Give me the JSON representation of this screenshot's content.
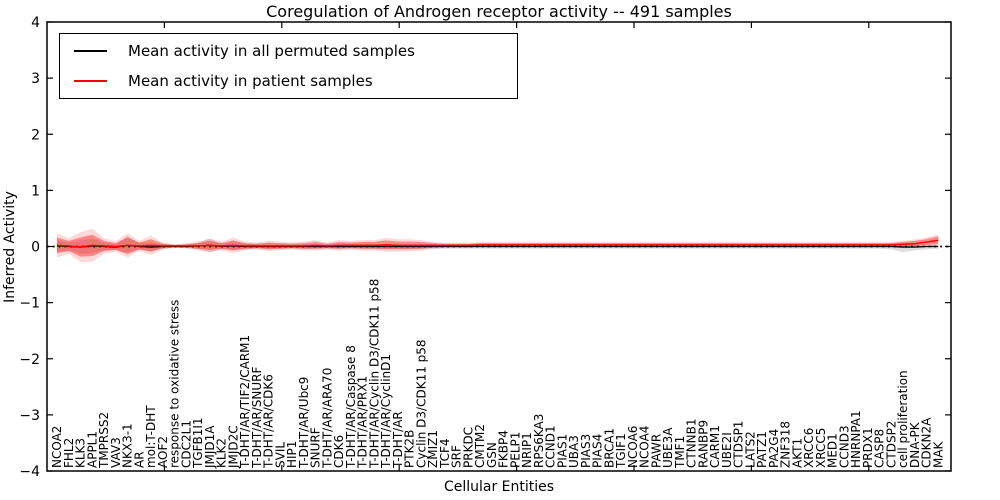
{
  "title": "Coregulation of Androgen receptor activity -- 491 samples",
  "legend": {
    "items": [
      {
        "label": "Mean activity in all permuted samples",
        "color": "#000000"
      },
      {
        "label": "Mean activity in patient samples",
        "color": "#ff0000"
      }
    ],
    "position": "upper left"
  },
  "colors": {
    "permuted_line": "#000000",
    "patient_line": "#ff0000",
    "permuted_band": "rgba(0,0,0,0.13)",
    "patient_band": "rgba(255,0,0,0.38)",
    "patient_band_halo": "rgba(255,0,0,0.15)",
    "axis": "#000000",
    "background": "#ffffff"
  },
  "chart_data": {
    "type": "line",
    "title": "Coregulation of Androgen receptor activity -- 491 samples",
    "xlabel": "Cellular Entities",
    "ylabel": "Inferred Activity",
    "ylim": [
      -4,
      4
    ],
    "yticks": [
      4,
      3,
      2,
      1,
      0,
      -1,
      -2,
      -3,
      -4
    ],
    "grid": false,
    "legend_position": "upper left",
    "zero_reference_line": "dotted",
    "x_tick_label_rotation": 90,
    "categories": [
      "NCOA2",
      "FHL2",
      "KLK3",
      "APPL1",
      "TMPRSS2",
      "VAV3",
      "NKX3-1",
      "AR",
      "mol:T-DHT",
      "AOF2",
      "response to oxidative stress",
      "CDC2L1",
      "TGFB1I1",
      "JMJD1A",
      "KLK2",
      "JMJD2C",
      "T-DHT/AR/TIF2/CARM1",
      "T-DHT/AR/SNURF",
      "T-DHT/AR/CDK6",
      "SVIL",
      "HIP1",
      "T-DHT/AR/Ubc9",
      "SNURF",
      "T-DHT/AR/ARA70",
      "CDK6",
      "T-DHT/AR/Caspase 8",
      "T-DHT/AR/PRX1",
      "T-DHT/AR/Cyclin D3/CDK11 p58",
      "T-DHT/AR/CyclinD1",
      "T-DHT/AR",
      "PTK2B",
      "Cyclin D3/CDK11 p58",
      "ZMIZ1",
      "TCF4",
      "SRF",
      "PRKDC",
      "CMTM2",
      "GSN",
      "FKBP4",
      "PELP1",
      "NRIP1",
      "RPS6KA3",
      "CCND1",
      "PIAS1",
      "UBA3",
      "PIAS3",
      "PIAS4",
      "BRCA1",
      "TGIF1",
      "NCOA6",
      "NCOA4",
      "PAWR",
      "UBE3A",
      "TMF1",
      "CTNNB1",
      "RANBP9",
      "CARM1",
      "UBE2I",
      "CTDSP1",
      "LATS2",
      "PATZ1",
      "PA2G4",
      "ZNF318",
      "AKT1",
      "XRCC6",
      "XRCC5",
      "MED1",
      "CCND3",
      "HNRNPA1",
      "PRDX1",
      "CASP8",
      "CTDSP2",
      "cell proliferation",
      "DNA-PK",
      "CDKN2A",
      "MAK"
    ],
    "series": [
      {
        "name": "Mean activity in all permuted samples",
        "color": "#000000",
        "style": "solid",
        "values": [
          0.01,
          0.0,
          -0.01,
          0.01,
          0.0,
          -0.01,
          0.02,
          0.0,
          -0.01,
          0.0,
          0.0,
          0.0,
          0.01,
          0.02,
          0.0,
          0.01,
          0.0,
          0.0,
          0.0,
          0.0,
          0.0,
          0.0,
          0.0,
          0.0,
          0.0,
          0.0,
          0.0,
          0.0,
          0.0,
          0.0,
          0.0,
          0.0,
          0.0,
          0.0,
          0.0,
          0.0,
          0.0,
          0.0,
          0.0,
          0.0,
          0.0,
          0.0,
          0.0,
          0.0,
          0.0,
          0.0,
          0.0,
          0.0,
          0.0,
          0.0,
          0.0,
          0.0,
          0.0,
          0.0,
          0.0,
          0.0,
          0.0,
          0.0,
          0.0,
          0.0,
          0.0,
          0.0,
          0.0,
          0.0,
          0.0,
          0.0,
          0.0,
          0.0,
          0.0,
          0.0,
          0.0,
          0.0,
          -0.01,
          -0.01,
          0.0,
          0.0
        ]
      },
      {
        "name": "Mean activity in patient samples",
        "color": "#ff0000",
        "style": "solid",
        "values": [
          0.02,
          0.01,
          -0.01,
          0.02,
          0.01,
          0.0,
          0.02,
          0.01,
          0.02,
          0.01,
          0.01,
          0.01,
          0.01,
          0.02,
          0.01,
          0.02,
          0.01,
          0.01,
          0.01,
          0.01,
          0.01,
          0.01,
          0.02,
          0.01,
          0.02,
          0.02,
          0.02,
          0.02,
          0.03,
          0.02,
          0.02,
          0.02,
          0.02,
          0.02,
          0.02,
          0.02,
          0.03,
          0.03,
          0.03,
          0.03,
          0.03,
          0.03,
          0.03,
          0.03,
          0.03,
          0.03,
          0.03,
          0.03,
          0.03,
          0.03,
          0.03,
          0.03,
          0.03,
          0.03,
          0.03,
          0.03,
          0.03,
          0.03,
          0.03,
          0.03,
          0.03,
          0.03,
          0.03,
          0.03,
          0.03,
          0.03,
          0.03,
          0.03,
          0.03,
          0.03,
          0.03,
          0.03,
          0.04,
          0.05,
          0.08,
          0.11
        ]
      }
    ],
    "bands": [
      {
        "name": "permuted samples std band",
        "color": "#000000",
        "lower": [
          -0.09,
          -0.07,
          -0.13,
          -0.12,
          -0.07,
          -0.06,
          -0.15,
          -0.06,
          -0.09,
          -0.04,
          -0.03,
          -0.03,
          -0.05,
          -0.1,
          -0.05,
          -0.06,
          -0.05,
          -0.04,
          -0.04,
          -0.04,
          -0.04,
          -0.04,
          -0.04,
          -0.04,
          -0.04,
          -0.04,
          -0.04,
          -0.04,
          -0.04,
          -0.04,
          -0.04,
          -0.04,
          -0.04,
          -0.04,
          -0.04,
          -0.04,
          -0.04,
          -0.04,
          -0.04,
          -0.04,
          -0.04,
          -0.04,
          -0.04,
          -0.04,
          -0.04,
          -0.04,
          -0.04,
          -0.04,
          -0.04,
          -0.04,
          -0.04,
          -0.04,
          -0.04,
          -0.04,
          -0.04,
          -0.04,
          -0.04,
          -0.04,
          -0.04,
          -0.04,
          -0.04,
          -0.04,
          -0.04,
          -0.04,
          -0.04,
          -0.04,
          -0.04,
          -0.04,
          -0.04,
          -0.04,
          -0.04,
          -0.05,
          -0.1,
          -0.07,
          -0.05,
          -0.04
        ],
        "upper": [
          0.11,
          0.07,
          0.11,
          0.14,
          0.07,
          0.04,
          0.19,
          0.06,
          0.07,
          0.04,
          0.03,
          0.03,
          0.07,
          0.14,
          0.05,
          0.08,
          0.05,
          0.04,
          0.04,
          0.04,
          0.04,
          0.04,
          0.04,
          0.04,
          0.04,
          0.04,
          0.04,
          0.04,
          0.04,
          0.04,
          0.04,
          0.04,
          0.04,
          0.04,
          0.04,
          0.04,
          0.04,
          0.04,
          0.04,
          0.04,
          0.04,
          0.04,
          0.04,
          0.04,
          0.04,
          0.04,
          0.04,
          0.04,
          0.04,
          0.04,
          0.04,
          0.04,
          0.04,
          0.04,
          0.04,
          0.04,
          0.04,
          0.04,
          0.04,
          0.04,
          0.04,
          0.04,
          0.04,
          0.04,
          0.04,
          0.04,
          0.04,
          0.04,
          0.04,
          0.04,
          0.04,
          0.05,
          0.05,
          0.04,
          0.04,
          0.04
        ]
      },
      {
        "name": "patient samples std band",
        "color": "#ff0000",
        "lower": [
          -0.12,
          -0.08,
          -0.18,
          -0.17,
          -0.08,
          -0.06,
          -0.12,
          -0.05,
          -0.09,
          -0.03,
          -0.01,
          -0.02,
          -0.04,
          -0.06,
          -0.04,
          -0.07,
          -0.04,
          -0.03,
          -0.05,
          -0.04,
          -0.03,
          -0.04,
          -0.04,
          -0.03,
          -0.04,
          -0.03,
          -0.04,
          -0.04,
          -0.05,
          -0.05,
          -0.05,
          -0.04,
          -0.02,
          -0.01,
          -0.01,
          -0.01,
          0.0,
          0.0,
          0.0,
          0.0,
          0.0,
          0.0,
          0.0,
          0.0,
          0.0,
          0.0,
          0.0,
          0.0,
          0.0,
          0.0,
          0.0,
          0.0,
          0.0,
          0.0,
          0.0,
          0.0,
          0.0,
          0.0,
          0.0,
          0.0,
          0.0,
          0.0,
          0.0,
          0.0,
          0.0,
          0.0,
          0.0,
          0.0,
          0.0,
          0.0,
          0.0,
          0.0,
          0.0,
          0.01,
          0.03,
          0.05
        ],
        "upper": [
          0.16,
          0.1,
          0.16,
          0.21,
          0.1,
          0.06,
          0.16,
          0.07,
          0.13,
          0.05,
          0.03,
          0.04,
          0.06,
          0.1,
          0.06,
          0.11,
          0.06,
          0.05,
          0.07,
          0.06,
          0.05,
          0.06,
          0.08,
          0.05,
          0.08,
          0.07,
          0.08,
          0.08,
          0.11,
          0.09,
          0.09,
          0.08,
          0.06,
          0.05,
          0.05,
          0.05,
          0.06,
          0.06,
          0.06,
          0.06,
          0.06,
          0.06,
          0.06,
          0.06,
          0.06,
          0.06,
          0.06,
          0.06,
          0.06,
          0.06,
          0.06,
          0.06,
          0.06,
          0.06,
          0.06,
          0.06,
          0.06,
          0.06,
          0.06,
          0.06,
          0.06,
          0.06,
          0.06,
          0.06,
          0.06,
          0.06,
          0.06,
          0.06,
          0.06,
          0.06,
          0.06,
          0.06,
          0.08,
          0.1,
          0.13,
          0.18
        ]
      }
    ]
  }
}
